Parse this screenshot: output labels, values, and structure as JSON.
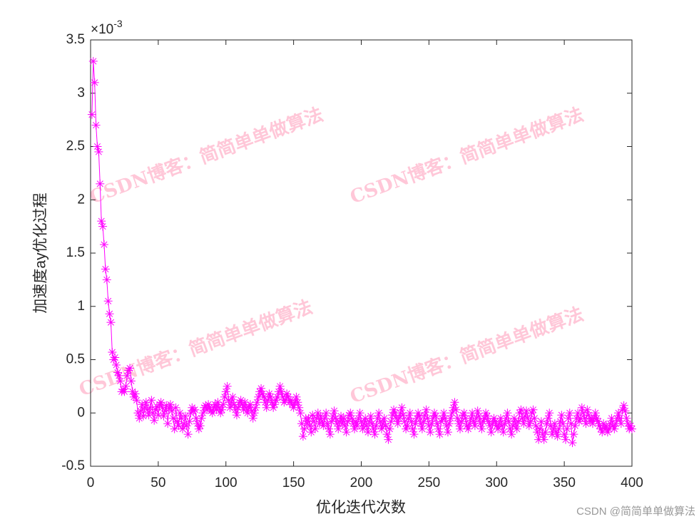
{
  "chart_data": {
    "type": "line",
    "xlabel": "优化迭代次数",
    "ylabel": "加速度ay优化过程",
    "y_exponent_base": "×10",
    "y_exponent_power": "-3",
    "watermark": "CSDN博客：简简单单做算法",
    "credit": "CSDN @简简单单做算法",
    "xlim": [
      0,
      400
    ],
    "xticks": [
      0,
      50,
      100,
      150,
      200,
      250,
      300,
      350,
      400
    ],
    "ylim": [
      -0.5,
      3.5
    ],
    "yticks": [
      -0.5,
      0,
      0.5,
      1,
      1.5,
      2,
      2.5,
      3,
      3.5
    ],
    "marker": "*",
    "series": [
      {
        "color": "#ff00ff",
        "x": [
          1,
          2,
          3,
          4,
          5,
          6,
          7,
          8,
          9,
          10,
          11,
          12,
          13,
          14,
          15,
          16,
          17,
          18,
          19,
          20,
          21,
          22,
          23,
          24,
          25,
          26,
          27,
          28,
          29,
          30,
          31,
          32,
          33,
          34,
          35,
          36,
          37,
          38,
          39,
          40,
          41,
          42,
          43,
          44,
          45,
          46,
          47,
          48,
          49,
          50,
          51,
          52,
          53,
          54,
          55,
          56,
          57,
          58,
          59,
          60,
          61,
          62,
          63,
          64,
          65,
          66,
          67,
          68,
          69,
          70,
          71,
          72,
          73,
          74,
          75,
          76,
          77,
          78,
          79,
          80,
          81,
          82,
          83,
          84,
          85,
          86,
          87,
          88,
          89,
          90,
          91,
          92,
          93,
          94,
          95,
          96,
          97,
          98,
          99,
          100,
          101,
          102,
          103,
          104,
          105,
          106,
          107,
          108,
          109,
          110,
          111,
          112,
          113,
          114,
          115,
          116,
          117,
          118,
          119,
          120,
          121,
          122,
          123,
          124,
          125,
          126,
          127,
          128,
          129,
          130,
          131,
          132,
          133,
          134,
          135,
          136,
          137,
          138,
          139,
          140,
          141,
          142,
          143,
          144,
          145,
          146,
          147,
          148,
          149,
          150,
          151,
          152,
          153,
          154,
          155,
          156,
          157,
          158,
          159,
          160,
          161,
          162,
          163,
          164,
          165,
          166,
          167,
          168,
          169,
          170,
          171,
          172,
          173,
          174,
          175,
          176,
          177,
          178,
          179,
          180,
          181,
          182,
          183,
          184,
          185,
          186,
          187,
          188,
          189,
          190,
          191,
          192,
          193,
          194,
          195,
          196,
          197,
          198,
          199,
          200,
          201,
          202,
          203,
          204,
          205,
          206,
          207,
          208,
          209,
          210,
          211,
          212,
          213,
          214,
          215,
          216,
          217,
          218,
          219,
          220,
          221,
          222,
          223,
          224,
          225,
          226,
          227,
          228,
          229,
          230,
          231,
          232,
          233,
          234,
          235,
          236,
          237,
          238,
          239,
          240,
          241,
          242,
          243,
          244,
          245,
          246,
          247,
          248,
          249,
          250,
          251,
          252,
          253,
          254,
          255,
          256,
          257,
          258,
          259,
          260,
          261,
          262,
          263,
          264,
          265,
          266,
          267,
          268,
          269,
          270,
          271,
          272,
          273,
          274,
          275,
          276,
          277,
          278,
          279,
          280,
          281,
          282,
          283,
          284,
          285,
          286,
          287,
          288,
          289,
          290,
          291,
          292,
          293,
          294,
          295,
          296,
          297,
          298,
          299,
          300,
          301,
          302,
          303,
          304,
          305,
          306,
          307,
          308,
          309,
          310,
          311,
          312,
          313,
          314,
          315,
          316,
          317,
          318,
          319,
          320,
          321,
          322,
          323,
          324,
          325,
          326,
          327,
          328,
          329,
          330,
          331,
          332,
          333,
          334,
          335,
          336,
          337,
          338,
          339,
          340,
          341,
          342,
          343,
          344,
          345,
          346,
          347,
          348,
          349,
          350,
          351,
          352,
          353,
          354,
          355,
          356,
          357,
          358,
          359,
          360,
          361,
          362,
          363,
          364,
          365,
          366,
          367,
          368,
          369,
          370,
          371,
          372,
          373,
          374,
          375,
          376,
          377,
          378,
          379,
          380,
          381,
          382,
          383,
          384,
          385,
          386,
          387,
          388,
          389,
          390,
          391,
          392,
          393,
          394,
          395,
          396,
          397,
          398,
          399,
          400
        ],
        "values": [
          2.8,
          3.3,
          3.1,
          2.7,
          2.5,
          2.45,
          2.15,
          1.8,
          1.75,
          1.58,
          1.35,
          1.25,
          1.05,
          0.93,
          0.85,
          0.57,
          0.5,
          0.52,
          0.45,
          0.38,
          0.35,
          0.3,
          0.2,
          0.22,
          0.2,
          0.25,
          0.35,
          0.4,
          0.42,
          0.3,
          0.2,
          0.15,
          0.18,
          0.12,
          0.0,
          -0.05,
          0.02,
          0.08,
          -0.03,
          0.05,
          0.1,
          0.03,
          -0.02,
          0.05,
          0.12,
          0.0,
          -0.07,
          0.03,
          0.06,
          -0.02,
          0.08,
          0.1,
          0.05,
          -0.03,
          0.02,
          0.07,
          -0.1,
          0.04,
          0.08,
          0.02,
          -0.05,
          -0.15,
          0.05,
          -0.08,
          -0.12,
          0.0,
          -0.05,
          -0.15,
          -0.1,
          -0.03,
          -0.12,
          -0.2,
          -0.08,
          0.0,
          0.05,
          0.02,
          0.03,
          -0.05,
          -0.1,
          -0.15,
          -0.12,
          -0.05,
          0.0,
          0.05,
          0.07,
          0.03,
          0.08,
          0.05,
          0.02,
          0.0,
          0.05,
          0.08,
          0.03,
          0.1,
          0.05,
          0.0,
          0.03,
          0.08,
          0.15,
          0.2,
          0.25,
          0.12,
          0.05,
          0.1,
          0.15,
          0.08,
          0.03,
          -0.02,
          0.05,
          0.1,
          0.12,
          0.08,
          0.03,
          0.1,
          0.05,
          0.0,
          0.05,
          0.08,
          0.02,
          -0.05,
          0.0,
          0.05,
          0.1,
          0.15,
          0.2,
          0.23,
          0.18,
          0.15,
          0.1,
          0.05,
          0.12,
          0.18,
          0.15,
          0.1,
          0.05,
          0.08,
          0.12,
          0.15,
          0.2,
          0.25,
          0.2,
          0.15,
          0.1,
          0.12,
          0.18,
          0.15,
          0.1,
          0.12,
          0.08,
          0.05,
          0.1,
          0.15,
          0.1,
          0.05,
          0.0,
          -0.1,
          -0.22,
          -0.15,
          -0.05,
          -0.1,
          -0.05,
          -0.12,
          -0.18,
          -0.02,
          -0.08,
          -0.15,
          -0.05,
          0.0,
          -0.1,
          -0.03,
          -0.08,
          -0.12,
          -0.05,
          0.0,
          -0.1,
          -0.15,
          -0.2,
          -0.08,
          -0.03,
          0.02,
          -0.05,
          -0.1,
          -0.15,
          -0.08,
          -0.03,
          -0.1,
          -0.05,
          -0.12,
          -0.18,
          -0.08,
          -0.02,
          0.0,
          -0.05,
          -0.1,
          -0.15,
          -0.08,
          -0.12,
          -0.05,
          0.0,
          -0.08,
          -0.15,
          -0.1,
          -0.05,
          -0.12,
          -0.18,
          -0.08,
          -0.03,
          -0.1,
          -0.15,
          -0.2,
          -0.12,
          -0.05,
          0.0,
          -0.08,
          -0.15,
          -0.1,
          -0.05,
          -0.12,
          -0.2,
          -0.25,
          -0.15,
          -0.08,
          -0.02,
          0.03,
          0.0,
          -0.05,
          -0.1,
          -0.05,
          0.0,
          0.05,
          -0.02,
          -0.08,
          -0.15,
          -0.12,
          -0.05,
          0.0,
          -0.08,
          -0.15,
          -0.2,
          -0.1,
          -0.05,
          0.0,
          -0.03,
          -0.1,
          -0.15,
          -0.08,
          -0.02,
          0.03,
          -0.05,
          -0.12,
          -0.18,
          -0.1,
          -0.05,
          0.0,
          -0.03,
          -0.1,
          -0.15,
          -0.2,
          -0.08,
          -0.05,
          0.0,
          -0.05,
          -0.12,
          -0.18,
          -0.1,
          -0.05,
          0.0,
          0.05,
          0.1,
          0.03,
          -0.05,
          -0.1,
          -0.15,
          -0.08,
          -0.02,
          0.0,
          -0.05,
          -0.12,
          -0.15,
          -0.1,
          -0.05,
          0.0,
          -0.08,
          -0.12,
          -0.05,
          0.02,
          -0.03,
          -0.1,
          -0.15,
          -0.08,
          -0.05,
          0.0,
          -0.03,
          -0.08,
          -0.12,
          -0.18,
          -0.1,
          -0.05,
          -0.08,
          -0.12,
          -0.15,
          -0.1,
          -0.05,
          -0.12,
          -0.18,
          -0.1,
          -0.05,
          0.0,
          -0.08,
          -0.15,
          -0.2,
          -0.12,
          -0.05,
          -0.1,
          -0.15,
          -0.08,
          0.0,
          0.03,
          -0.05,
          -0.1,
          -0.03,
          0.02,
          -0.05,
          -0.12,
          -0.08,
          0.0,
          0.03,
          -0.05,
          -0.12,
          -0.18,
          -0.25,
          -0.15,
          -0.08,
          -0.2,
          -0.25,
          -0.18,
          -0.1,
          -0.05,
          0.0,
          -0.12,
          -0.2,
          -0.15,
          -0.1,
          -0.18,
          -0.22,
          -0.15,
          -0.08,
          -0.02,
          -0.1,
          -0.2,
          -0.25,
          -0.15,
          -0.05,
          0.0,
          -0.1,
          -0.28,
          -0.2,
          -0.12,
          -0.05,
          0.0,
          -0.08,
          -0.05,
          0.05,
          0.0,
          -0.05,
          -0.1,
          0.03,
          -0.02,
          -0.08,
          -0.05,
          -0.1,
          -0.05,
          0.0,
          -0.05,
          -0.08,
          -0.12,
          -0.15,
          -0.18,
          -0.1,
          -0.15,
          -0.12,
          -0.18,
          -0.15,
          -0.1,
          -0.05,
          -0.12,
          -0.15,
          -0.1,
          -0.05,
          0.0,
          -0.05,
          -0.1,
          0.03,
          0.07,
          0.02,
          -0.05,
          -0.1,
          -0.15,
          -0.12,
          -0.15
        ]
      }
    ]
  }
}
